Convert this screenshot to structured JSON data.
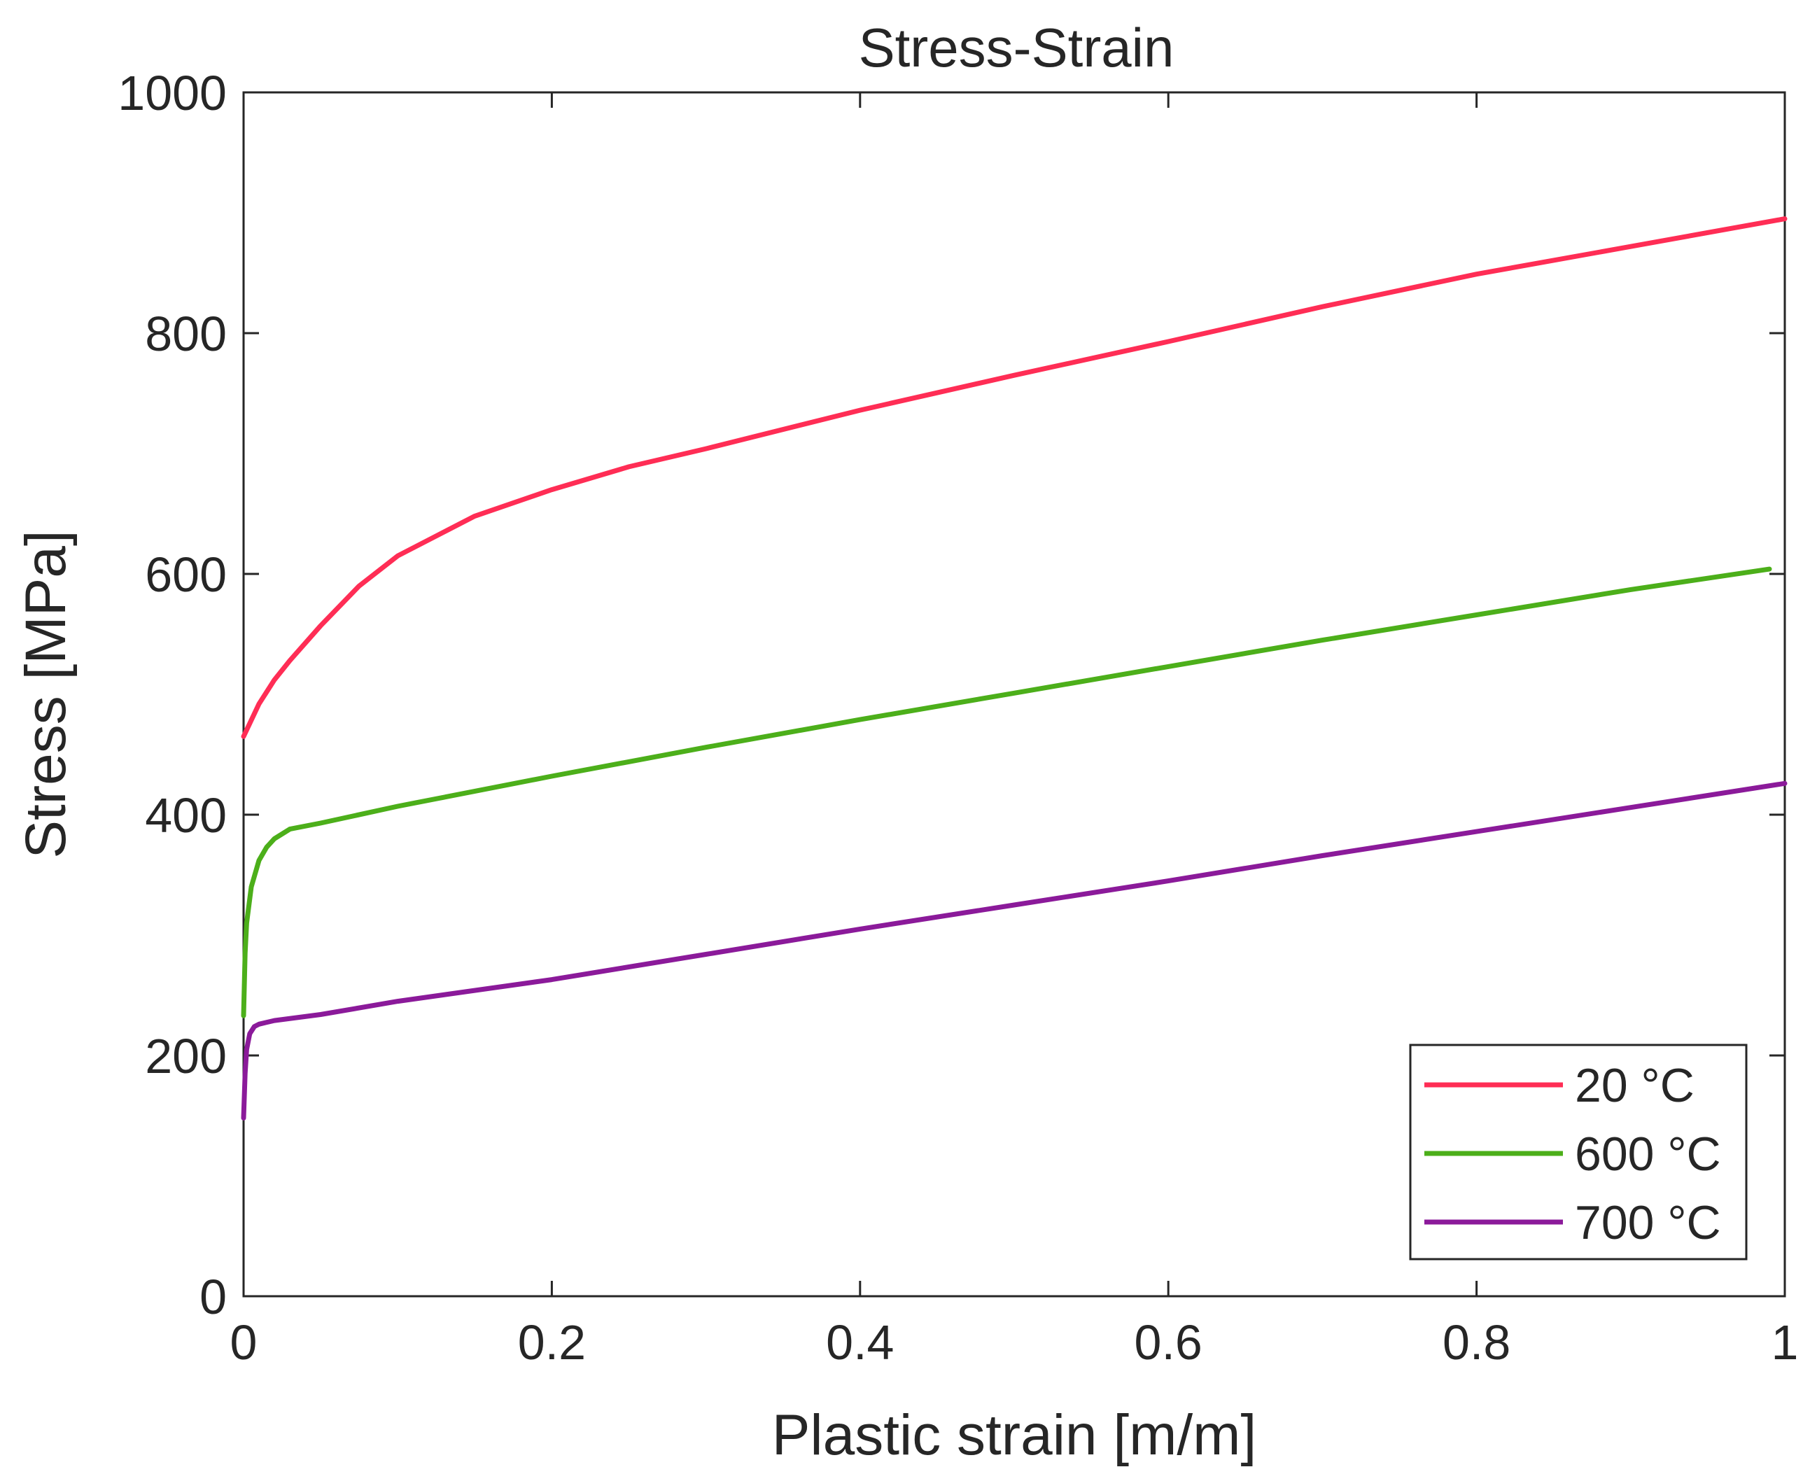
{
  "chart_data": {
    "type": "line",
    "title": "Stress-Strain",
    "xlabel": "Plastic strain [m/m]",
    "ylabel": "Stress [MPa]",
    "xlim": [
      0,
      1
    ],
    "ylim": [
      0,
      1000
    ],
    "xticks": [
      0,
      0.2,
      0.4,
      0.6,
      0.8,
      1
    ],
    "xtick_labels": [
      "0",
      "0.2",
      "0.4",
      "0.6",
      "0.8",
      "1"
    ],
    "yticks": [
      0,
      200,
      400,
      600,
      800,
      1000
    ],
    "ytick_labels": [
      "0",
      "200",
      "400",
      "600",
      "800",
      "1000"
    ],
    "grid": false,
    "legend_position": "bottom-right",
    "series": [
      {
        "name": "20 °C",
        "color": "#ff2d55",
        "x": [
          0,
          0.01,
          0.02,
          0.03,
          0.05,
          0.075,
          0.1,
          0.15,
          0.2,
          0.25,
          0.3,
          0.4,
          0.5,
          0.6,
          0.7,
          0.8,
          0.9,
          1.0
        ],
        "y": [
          465,
          492,
          512,
          528,
          557,
          590,
          615,
          648,
          670,
          689,
          704,
          736,
          765,
          793,
          822,
          849,
          872,
          895
        ]
      },
      {
        "name": "600 °C",
        "color": "#4caf1a",
        "x": [
          0,
          0.001,
          0.002,
          0.005,
          0.01,
          0.015,
          0.02,
          0.03,
          0.05,
          0.1,
          0.2,
          0.3,
          0.4,
          0.5,
          0.6,
          0.7,
          0.8,
          0.9,
          0.99
        ],
        "y": [
          233,
          285,
          310,
          340,
          362,
          373,
          380,
          388,
          393,
          407,
          432,
          456,
          479,
          501,
          523,
          545,
          566,
          587,
          604
        ]
      },
      {
        "name": "700 °C",
        "color": "#8b1a9a",
        "x": [
          0,
          0.001,
          0.002,
          0.004,
          0.007,
          0.01,
          0.02,
          0.05,
          0.1,
          0.2,
          0.3,
          0.4,
          0.5,
          0.6,
          0.7,
          0.8,
          0.9,
          1.0
        ],
        "y": [
          148,
          185,
          205,
          218,
          224,
          226,
          229,
          234,
          245,
          263,
          284,
          305,
          325,
          345,
          366,
          386,
          406,
          426
        ]
      }
    ]
  }
}
